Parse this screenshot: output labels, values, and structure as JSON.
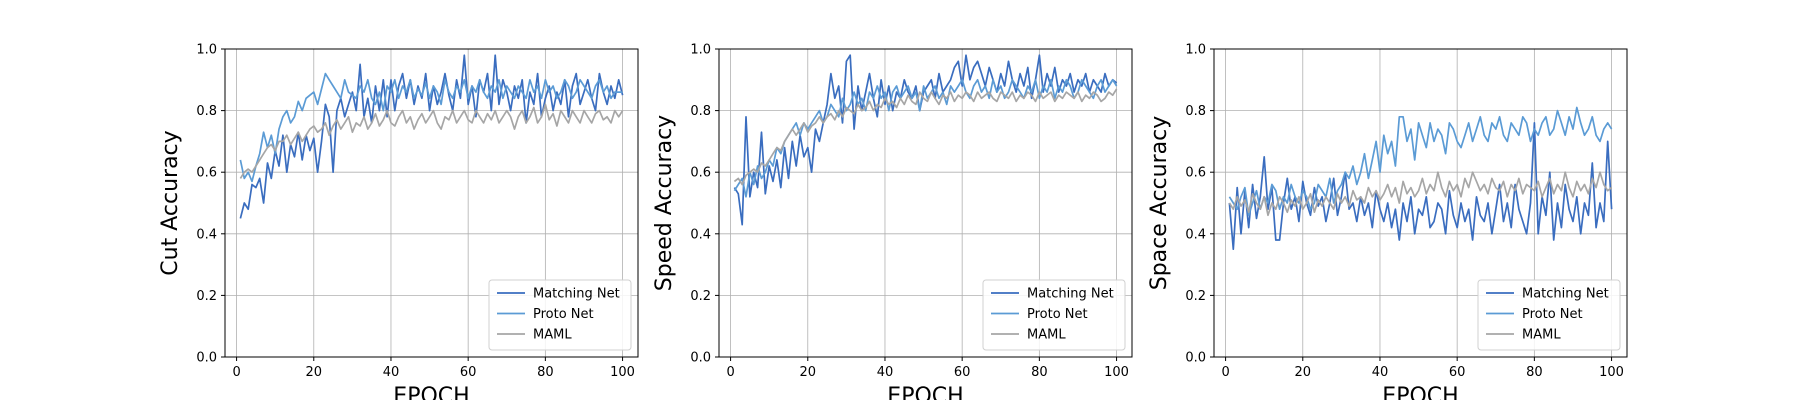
{
  "chart_data": [
    {
      "type": "line",
      "xlabel": "EPOCH",
      "ylabel": "Cut Accuracy",
      "xlim": [
        -3,
        104
      ],
      "ylim": [
        0.0,
        1.0
      ],
      "xticks": [
        0,
        20,
        40,
        60,
        80,
        100
      ],
      "xtick_labels": [
        "0",
        "20",
        "40",
        "60",
        "80",
        "100"
      ],
      "yticks": [
        0.0,
        0.2,
        0.4,
        0.6,
        0.8,
        1.0
      ],
      "ytick_labels": [
        "0.0",
        "0.2",
        "0.4",
        "0.6",
        "0.8",
        "1.0"
      ],
      "grid": true,
      "legend_position": "lower-right",
      "series": [
        {
          "name": "Matching Net",
          "color": "#3a6dbf",
          "x_start": 1,
          "x_step": 1,
          "values": [
            0.45,
            0.5,
            0.48,
            0.56,
            0.55,
            0.58,
            0.5,
            0.63,
            0.58,
            0.67,
            0.62,
            0.72,
            0.6,
            0.69,
            0.65,
            0.73,
            0.64,
            0.72,
            0.67,
            0.71,
            0.6,
            0.7,
            0.82,
            0.78,
            0.6,
            0.8,
            0.84,
            0.78,
            0.82,
            0.86,
            0.8,
            0.95,
            0.78,
            0.84,
            0.76,
            0.88,
            0.8,
            0.9,
            0.78,
            0.9,
            0.8,
            0.88,
            0.92,
            0.84,
            0.9,
            0.82,
            0.88,
            0.84,
            0.92,
            0.8,
            0.88,
            0.82,
            0.86,
            0.92,
            0.85,
            0.8,
            0.9,
            0.84,
            0.98,
            0.82,
            0.88,
            0.78,
            0.9,
            0.86,
            0.92,
            0.8,
            0.98,
            0.82,
            0.9,
            0.86,
            0.8,
            0.88,
            0.84,
            0.9,
            0.76,
            0.86,
            0.82,
            0.92,
            0.78,
            0.84,
            0.88,
            0.8,
            0.86,
            0.82,
            0.9,
            0.78,
            0.88,
            0.92,
            0.82,
            0.86,
            0.9,
            0.84,
            0.8,
            0.92,
            0.86,
            0.82,
            0.88,
            0.84,
            0.9,
            0.85
          ]
        },
        {
          "name": "Proto Net",
          "color": "#5b9bd5",
          "x_start": 1,
          "x_step": 1,
          "values": [
            0.64,
            0.58,
            0.6,
            0.57,
            0.62,
            0.66,
            0.73,
            0.68,
            0.72,
            0.66,
            0.74,
            0.78,
            0.8,
            0.76,
            0.78,
            0.83,
            0.8,
            0.84,
            0.85,
            0.86,
            0.82,
            0.87,
            0.92,
            0.9,
            0.88,
            0.86,
            0.84,
            0.9,
            0.86,
            0.85,
            0.84,
            0.88,
            0.86,
            0.9,
            0.84,
            0.82,
            0.86,
            0.8,
            0.88,
            0.86,
            0.9,
            0.84,
            0.88,
            0.86,
            0.9,
            0.84,
            0.87,
            0.85,
            0.89,
            0.84,
            0.88,
            0.86,
            0.82,
            0.9,
            0.86,
            0.84,
            0.88,
            0.86,
            0.9,
            0.84,
            0.88,
            0.86,
            0.9,
            0.86,
            0.84,
            0.88,
            0.86,
            0.9,
            0.84,
            0.88,
            0.86,
            0.84,
            0.88,
            0.86,
            0.84,
            0.9,
            0.86,
            0.88,
            0.84,
            0.9,
            0.86,
            0.88,
            0.84,
            0.86,
            0.9,
            0.88,
            0.84,
            0.86,
            0.9,
            0.88,
            0.86,
            0.84,
            0.88,
            0.9,
            0.86,
            0.88,
            0.84,
            0.86,
            0.86,
            0.86
          ]
        },
        {
          "name": "MAML",
          "color": "#a6a6a6",
          "x_start": 1,
          "x_step": 1,
          "values": [
            0.58,
            0.6,
            0.61,
            0.6,
            0.62,
            0.64,
            0.66,
            0.68,
            0.69,
            0.67,
            0.7,
            0.7,
            0.72,
            0.69,
            0.71,
            0.73,
            0.7,
            0.72,
            0.74,
            0.75,
            0.73,
            0.74,
            0.76,
            0.72,
            0.75,
            0.77,
            0.74,
            0.76,
            0.78,
            0.73,
            0.76,
            0.75,
            0.78,
            0.74,
            0.76,
            0.79,
            0.75,
            0.77,
            0.8,
            0.76,
            0.75,
            0.78,
            0.8,
            0.76,
            0.78,
            0.74,
            0.77,
            0.79,
            0.76,
            0.78,
            0.8,
            0.76,
            0.74,
            0.78,
            0.77,
            0.8,
            0.76,
            0.78,
            0.8,
            0.77,
            0.76,
            0.8,
            0.78,
            0.76,
            0.79,
            0.77,
            0.8,
            0.76,
            0.78,
            0.8,
            0.78,
            0.74,
            0.78,
            0.8,
            0.76,
            0.78,
            0.81,
            0.76,
            0.78,
            0.82,
            0.77,
            0.79,
            0.75,
            0.8,
            0.78,
            0.76,
            0.8,
            0.78,
            0.76,
            0.8,
            0.78,
            0.76,
            0.79,
            0.8,
            0.77,
            0.78,
            0.76,
            0.8,
            0.78,
            0.8
          ]
        }
      ]
    },
    {
      "type": "line",
      "xlabel": "EPOCH",
      "ylabel": "Speed Accuracy",
      "xlim": [
        -3,
        104
      ],
      "ylim": [
        0.0,
        1.0
      ],
      "xticks": [
        0,
        20,
        40,
        60,
        80,
        100
      ],
      "xtick_labels": [
        "0",
        "20",
        "40",
        "60",
        "80",
        "100"
      ],
      "yticks": [
        0.0,
        0.2,
        0.4,
        0.6,
        0.8,
        1.0
      ],
      "ytick_labels": [
        "0.0",
        "0.2",
        "0.4",
        "0.6",
        "0.8",
        "1.0"
      ],
      "grid": true,
      "legend_position": "lower-right",
      "series": [
        {
          "name": "Matching Net",
          "color": "#3a6dbf",
          "x_start": 1,
          "x_step": 1,
          "values": [
            0.55,
            0.53,
            0.43,
            0.78,
            0.52,
            0.6,
            0.55,
            0.73,
            0.53,
            0.62,
            0.57,
            0.64,
            0.55,
            0.68,
            0.58,
            0.7,
            0.62,
            0.72,
            0.65,
            0.68,
            0.6,
            0.74,
            0.7,
            0.76,
            0.82,
            0.92,
            0.84,
            0.88,
            0.76,
            0.96,
            0.98,
            0.74,
            0.88,
            0.8,
            0.86,
            0.92,
            0.84,
            0.78,
            0.9,
            0.82,
            0.88,
            0.8,
            0.86,
            0.84,
            0.9,
            0.86,
            0.84,
            0.88,
            0.8,
            0.86,
            0.88,
            0.9,
            0.84,
            0.92,
            0.86,
            0.88,
            0.9,
            0.94,
            0.96,
            0.88,
            0.98,
            0.9,
            0.94,
            0.96,
            0.92,
            0.88,
            0.94,
            0.9,
            0.86,
            0.92,
            0.88,
            0.96,
            0.9,
            0.86,
            0.92,
            0.88,
            0.94,
            0.84,
            0.9,
            0.98,
            0.86,
            0.92,
            0.88,
            0.94,
            0.86,
            0.9,
            0.88,
            0.92,
            0.86,
            0.9,
            0.88,
            0.92,
            0.86,
            0.9,
            0.88,
            0.86,
            0.92,
            0.88,
            0.9,
            0.89
          ]
        },
        {
          "name": "Proto Net",
          "color": "#5b9bd5",
          "x_start": 1,
          "x_step": 1,
          "values": [
            0.54,
            0.56,
            0.58,
            0.52,
            0.6,
            0.56,
            0.62,
            0.58,
            0.6,
            0.64,
            0.62,
            0.68,
            0.66,
            0.7,
            0.72,
            0.74,
            0.76,
            0.72,
            0.76,
            0.74,
            0.76,
            0.78,
            0.8,
            0.76,
            0.78,
            0.82,
            0.8,
            0.78,
            0.84,
            0.8,
            0.82,
            0.86,
            0.82,
            0.84,
            0.8,
            0.86,
            0.84,
            0.88,
            0.84,
            0.86,
            0.8,
            0.86,
            0.88,
            0.84,
            0.86,
            0.88,
            0.84,
            0.86,
            0.8,
            0.88,
            0.84,
            0.86,
            0.88,
            0.84,
            0.86,
            0.82,
            0.88,
            0.86,
            0.88,
            0.9,
            0.86,
            0.84,
            0.88,
            0.9,
            0.86,
            0.88,
            0.84,
            0.9,
            0.86,
            0.88,
            0.84,
            0.86,
            0.9,
            0.88,
            0.86,
            0.84,
            0.88,
            0.86,
            0.9,
            0.84,
            0.88,
            0.86,
            0.9,
            0.84,
            0.88,
            0.86,
            0.9,
            0.88,
            0.84,
            0.86,
            0.9,
            0.88,
            0.86,
            0.84,
            0.88,
            0.9,
            0.86,
            0.88,
            0.9,
            0.88
          ]
        },
        {
          "name": "MAML",
          "color": "#a6a6a6",
          "x_start": 1,
          "x_step": 1,
          "values": [
            0.57,
            0.58,
            0.56,
            0.59,
            0.6,
            0.61,
            0.6,
            0.63,
            0.62,
            0.64,
            0.66,
            0.68,
            0.67,
            0.7,
            0.72,
            0.74,
            0.72,
            0.74,
            0.76,
            0.73,
            0.75,
            0.76,
            0.78,
            0.76,
            0.78,
            0.79,
            0.77,
            0.8,
            0.78,
            0.81,
            0.8,
            0.79,
            0.82,
            0.8,
            0.81,
            0.83,
            0.8,
            0.82,
            0.81,
            0.84,
            0.82,
            0.83,
            0.81,
            0.84,
            0.82,
            0.85,
            0.83,
            0.82,
            0.86,
            0.84,
            0.83,
            0.86,
            0.84,
            0.82,
            0.85,
            0.84,
            0.86,
            0.83,
            0.85,
            0.84,
            0.86,
            0.85,
            0.83,
            0.86,
            0.84,
            0.85,
            0.86,
            0.84,
            0.83,
            0.86,
            0.85,
            0.84,
            0.86,
            0.83,
            0.85,
            0.84,
            0.86,
            0.85,
            0.83,
            0.86,
            0.84,
            0.85,
            0.86,
            0.83,
            0.85,
            0.84,
            0.86,
            0.85,
            0.84,
            0.86,
            0.83,
            0.85,
            0.84,
            0.86,
            0.85,
            0.83,
            0.84,
            0.86,
            0.85,
            0.87
          ]
        }
      ]
    },
    {
      "type": "line",
      "xlabel": "EPOCH",
      "ylabel": "Space Accuracy",
      "xlim": [
        -3,
        104
      ],
      "ylim": [
        0.0,
        1.0
      ],
      "xticks": [
        0,
        20,
        40,
        60,
        80,
        100
      ],
      "xtick_labels": [
        "0",
        "20",
        "40",
        "60",
        "80",
        "100"
      ],
      "yticks": [
        0.0,
        0.2,
        0.4,
        0.6,
        0.8,
        1.0
      ],
      "ytick_labels": [
        "0.0",
        "0.2",
        "0.4",
        "0.6",
        "0.8",
        "1.0"
      ],
      "grid": true,
      "legend_position": "lower-right",
      "series": [
        {
          "name": "Matching Net",
          "color": "#3a6dbf",
          "x_start": 1,
          "x_step": 1,
          "values": [
            0.5,
            0.35,
            0.55,
            0.4,
            0.54,
            0.42,
            0.56,
            0.45,
            0.52,
            0.65,
            0.48,
            0.55,
            0.38,
            0.38,
            0.5,
            0.58,
            0.48,
            0.52,
            0.44,
            0.57,
            0.5,
            0.46,
            0.55,
            0.49,
            0.52,
            0.44,
            0.5,
            0.58,
            0.46,
            0.52,
            0.6,
            0.48,
            0.5,
            0.44,
            0.52,
            0.46,
            0.5,
            0.42,
            0.54,
            0.48,
            0.44,
            0.5,
            0.42,
            0.48,
            0.38,
            0.5,
            0.44,
            0.52,
            0.4,
            0.48,
            0.46,
            0.52,
            0.42,
            0.44,
            0.5,
            0.48,
            0.4,
            0.54,
            0.46,
            0.42,
            0.5,
            0.44,
            0.48,
            0.38,
            0.52,
            0.46,
            0.44,
            0.5,
            0.4,
            0.48,
            0.56,
            0.44,
            0.5,
            0.42,
            0.56,
            0.48,
            0.44,
            0.4,
            0.5,
            0.76,
            0.4,
            0.52,
            0.46,
            0.6,
            0.38,
            0.5,
            0.42,
            0.56,
            0.48,
            0.44,
            0.52,
            0.4,
            0.5,
            0.46,
            0.63,
            0.42,
            0.5,
            0.44,
            0.7,
            0.48
          ]
        },
        {
          "name": "Proto Net",
          "color": "#5b9bd5",
          "x_start": 1,
          "x_step": 1,
          "values": [
            0.52,
            0.5,
            0.48,
            0.52,
            0.55,
            0.46,
            0.5,
            0.54,
            0.48,
            0.52,
            0.5,
            0.56,
            0.54,
            0.48,
            0.52,
            0.5,
            0.56,
            0.52,
            0.5,
            0.54,
            0.52,
            0.48,
            0.5,
            0.56,
            0.54,
            0.52,
            0.58,
            0.5,
            0.54,
            0.56,
            0.6,
            0.58,
            0.62,
            0.56,
            0.6,
            0.66,
            0.58,
            0.64,
            0.7,
            0.6,
            0.72,
            0.66,
            0.7,
            0.62,
            0.78,
            0.78,
            0.7,
            0.74,
            0.64,
            0.76,
            0.72,
            0.68,
            0.76,
            0.7,
            0.74,
            0.72,
            0.66,
            0.76,
            0.74,
            0.7,
            0.68,
            0.72,
            0.76,
            0.7,
            0.74,
            0.78,
            0.72,
            0.7,
            0.76,
            0.74,
            0.78,
            0.72,
            0.7,
            0.76,
            0.74,
            0.72,
            0.78,
            0.76,
            0.7,
            0.74,
            0.72,
            0.76,
            0.78,
            0.72,
            0.74,
            0.8,
            0.76,
            0.72,
            0.78,
            0.74,
            0.81,
            0.76,
            0.72,
            0.74,
            0.78,
            0.72,
            0.7,
            0.74,
            0.76,
            0.74
          ]
        },
        {
          "name": "MAML",
          "color": "#a6a6a6",
          "x_start": 1,
          "x_step": 1,
          "values": [
            0.5,
            0.48,
            0.52,
            0.49,
            0.51,
            0.47,
            0.53,
            0.5,
            0.48,
            0.52,
            0.46,
            0.5,
            0.48,
            0.52,
            0.5,
            0.47,
            0.51,
            0.49,
            0.52,
            0.48,
            0.5,
            0.53,
            0.47,
            0.51,
            0.49,
            0.52,
            0.5,
            0.48,
            0.53,
            0.5,
            0.52,
            0.49,
            0.54,
            0.51,
            0.52,
            0.5,
            0.55,
            0.52,
            0.54,
            0.51,
            0.53,
            0.56,
            0.52,
            0.55,
            0.5,
            0.57,
            0.53,
            0.55,
            0.52,
            0.54,
            0.58,
            0.53,
            0.56,
            0.54,
            0.6,
            0.55,
            0.52,
            0.57,
            0.54,
            0.56,
            0.52,
            0.58,
            0.55,
            0.6,
            0.57,
            0.54,
            0.56,
            0.53,
            0.58,
            0.55,
            0.54,
            0.57,
            0.52,
            0.56,
            0.54,
            0.58,
            0.53,
            0.56,
            0.55,
            0.54,
            0.57,
            0.52,
            0.55,
            0.58,
            0.53,
            0.56,
            0.54,
            0.6,
            0.55,
            0.52,
            0.57,
            0.54,
            0.56,
            0.53,
            0.58,
            0.55,
            0.6,
            0.56,
            0.54,
            0.55
          ]
        }
      ]
    }
  ]
}
